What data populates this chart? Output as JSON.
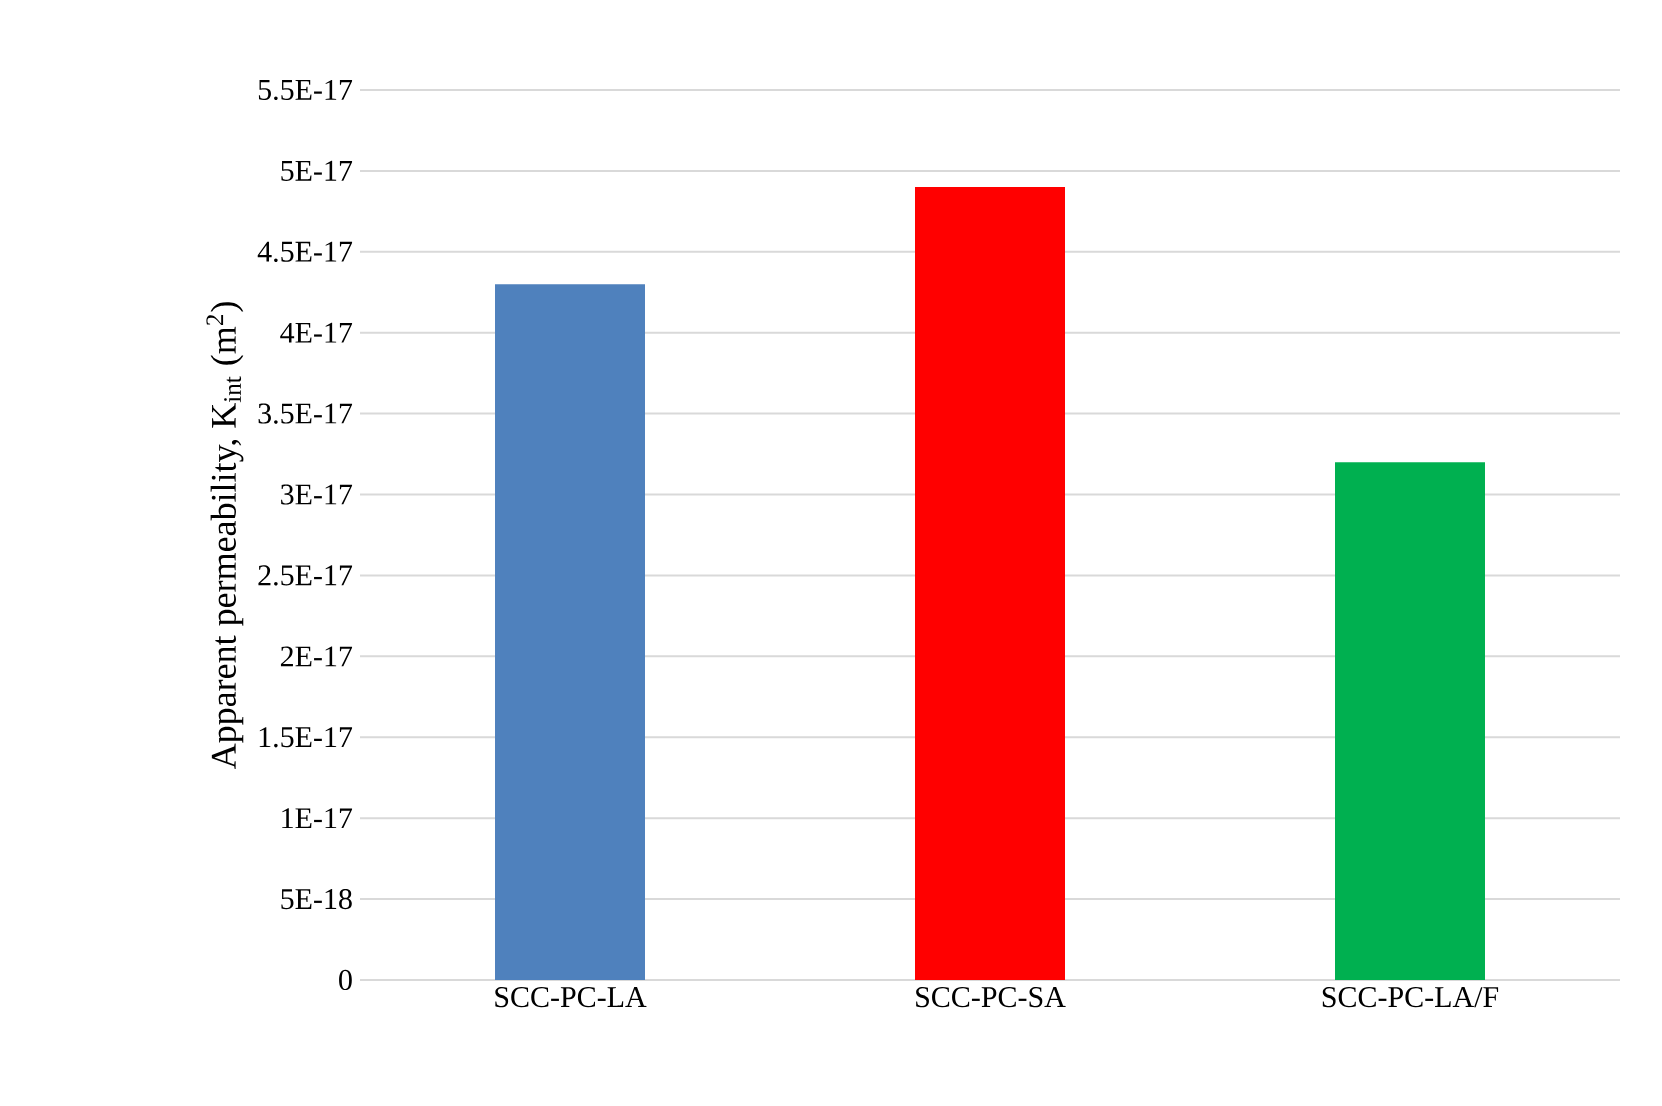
{
  "chart_data": {
    "type": "bar",
    "ylabel": "Apparent permeability, K$_{int}$ (m$^{2}$)",
    "categories": [
      "SCC-PC-LA",
      "SCC-PC-SA",
      "SCC-PC-LA/F"
    ],
    "values": [
      4.3e-17,
      4.9e-17,
      3.2e-17
    ],
    "colors": [
      "#4f81bd",
      "#ff0000",
      "#00b050"
    ],
    "ylim": [
      0,
      5.5e-17
    ],
    "yticks": [
      {
        "value": 0,
        "label": "0"
      },
      {
        "value": 5e-18,
        "label": "5E-18"
      },
      {
        "value": 1e-17,
        "label": "1E-17"
      },
      {
        "value": 1.5e-17,
        "label": "1.5E-17"
      },
      {
        "value": 2e-17,
        "label": "2E-17"
      },
      {
        "value": 2.5e-17,
        "label": "2.5E-17"
      },
      {
        "value": 3e-17,
        "label": "3E-17"
      },
      {
        "value": 3.5e-17,
        "label": "3.5E-17"
      },
      {
        "value": 4e-17,
        "label": "4E-17"
      },
      {
        "value": 4.5e-17,
        "label": "4.5E-17"
      },
      {
        "value": 5e-17,
        "label": "5E-17"
      },
      {
        "value": 5.5e-17,
        "label": "5.5E-17"
      }
    ],
    "grid": true
  }
}
